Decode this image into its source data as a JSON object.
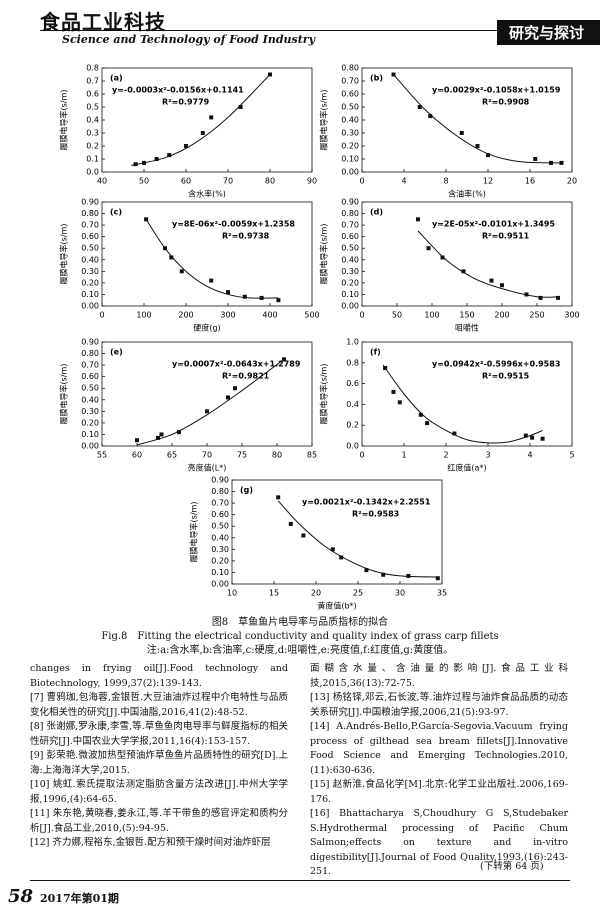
{
  "header": {
    "journal_cn": "食品工业科技",
    "journal_en": "Science and Technology of Food Industry",
    "section": "研究与探讨"
  },
  "chart_data": [
    {
      "type": "scatter",
      "label": "(a)",
      "equation": "y=-0.0003x²-0.0156x+0.1141",
      "r2": "R²=0.9779",
      "xlabel": "含水率(%)",
      "ylabel": "履膜电导率(s/m)",
      "x": [
        48,
        50,
        53,
        56,
        60,
        64,
        66,
        73,
        80
      ],
      "values": [
        0.06,
        0.07,
        0.1,
        0.13,
        0.2,
        0.3,
        0.42,
        0.5,
        0.75
      ],
      "trendline": {
        "x": [
          47,
          55,
          62,
          70,
          80
        ],
        "y": [
          0.05,
          0.11,
          0.22,
          0.42,
          0.75
        ]
      },
      "xlim": [
        40,
        90
      ],
      "xticks": [
        40,
        50,
        60,
        70,
        80,
        90
      ],
      "ylim": [
        0,
        0.8
      ],
      "yticks": [
        {
          "value": 0,
          "label": "0.0"
        },
        {
          "value": 0.1,
          "label": "0.1"
        },
        {
          "value": 0.2,
          "label": "0.2"
        },
        {
          "value": 0.3,
          "label": "0.3"
        },
        {
          "value": 0.4,
          "label": "0.4"
        },
        {
          "value": 0.5,
          "label": "0.5"
        },
        {
          "value": 0.6,
          "label": "0.6"
        },
        {
          "value": 0.7,
          "label": "0.7"
        },
        {
          "value": 0.8,
          "label": "0.8"
        }
      ]
    },
    {
      "type": "scatter",
      "label": "(b)",
      "equation": "y=0.0029x²-0.1058x+1.0159",
      "r2": "R²=0.9908",
      "xlabel": "含油率(%)",
      "ylabel": "履膜电导率(s/m)",
      "x": [
        3,
        5.5,
        6.5,
        9.5,
        11,
        12,
        16.5,
        18,
        19
      ],
      "values": [
        0.75,
        0.5,
        0.43,
        0.3,
        0.2,
        0.13,
        0.1,
        0.07,
        0.07
      ],
      "trendline": {
        "x": [
          3,
          6,
          9,
          12,
          15,
          19
        ],
        "y": [
          0.75,
          0.48,
          0.28,
          0.14,
          0.08,
          0.07
        ]
      },
      "xlim": [
        0,
        20
      ],
      "xticks": [
        0,
        4,
        8,
        12,
        16,
        20
      ],
      "ylim": [
        0,
        0.8
      ],
      "yticks": [
        {
          "value": 0,
          "label": "0.00"
        },
        {
          "value": 0.1,
          "label": "0.10"
        },
        {
          "value": 0.2,
          "label": "0.20"
        },
        {
          "value": 0.3,
          "label": "0.30"
        },
        {
          "value": 0.4,
          "label": "0.40"
        },
        {
          "value": 0.5,
          "label": "0.50"
        },
        {
          "value": 0.6,
          "label": "0.60"
        },
        {
          "value": 0.7,
          "label": "0.70"
        },
        {
          "value": 0.8,
          "label": "0.80"
        }
      ]
    },
    {
      "type": "scatter",
      "label": "(c)",
      "equation": "y=8E-06x²-0.0059x+1.2358",
      "r2": "R²=0.9738",
      "xlabel": "硬度(g)",
      "ylabel": "履膜电导率(s/m)",
      "x": [
        105,
        150,
        165,
        190,
        260,
        300,
        340,
        380,
        420
      ],
      "values": [
        0.75,
        0.5,
        0.42,
        0.3,
        0.22,
        0.12,
        0.08,
        0.07,
        0.05
      ],
      "trendline": {
        "x": [
          105,
          150,
          200,
          250,
          300,
          350,
          420
        ],
        "y": [
          0.75,
          0.5,
          0.3,
          0.17,
          0.1,
          0.07,
          0.07
        ]
      },
      "xlim": [
        0,
        500
      ],
      "xticks": [
        0,
        100,
        200,
        300,
        400,
        500
      ],
      "ylim": [
        0,
        0.9
      ],
      "yticks": [
        {
          "value": 0,
          "label": "0.00"
        },
        {
          "value": 0.1,
          "label": "0.10"
        },
        {
          "value": 0.2,
          "label": "0.20"
        },
        {
          "value": 0.3,
          "label": "0.30"
        },
        {
          "value": 0.4,
          "label": "0.40"
        },
        {
          "value": 0.5,
          "label": "0.50"
        },
        {
          "value": 0.6,
          "label": "0.60"
        },
        {
          "value": 0.7,
          "label": "0.70"
        },
        {
          "value": 0.8,
          "label": "0.80"
        },
        {
          "value": 0.9,
          "label": "0.90"
        }
      ]
    },
    {
      "type": "scatter",
      "label": "(d)",
      "equation": "y=2E-05x²-0.0101x+1.3495",
      "r2": "R²=0.9511",
      "xlabel": "咀嚼性",
      "ylabel": "履膜电导率(s/m)",
      "x": [
        80,
        95,
        115,
        145,
        185,
        200,
        235,
        255,
        280
      ],
      "values": [
        0.75,
        0.5,
        0.42,
        0.3,
        0.22,
        0.18,
        0.1,
        0.07,
        0.07
      ],
      "trendline": {
        "x": [
          80,
          120,
          160,
          200,
          250,
          280
        ],
        "y": [
          0.65,
          0.4,
          0.24,
          0.15,
          0.08,
          0.08
        ]
      },
      "xlim": [
        0,
        300
      ],
      "xticks": [
        0,
        50,
        100,
        150,
        200,
        250,
        300
      ],
      "ylim": [
        0,
        0.9
      ],
      "yticks": [
        {
          "value": 0,
          "label": "0.00"
        },
        {
          "value": 0.1,
          "label": "0.10"
        },
        {
          "value": 0.2,
          "label": "0.20"
        },
        {
          "value": 0.3,
          "label": "0.30"
        },
        {
          "value": 0.4,
          "label": "0.40"
        },
        {
          "value": 0.5,
          "label": "0.50"
        },
        {
          "value": 0.6,
          "label": "0.60"
        },
        {
          "value": 0.7,
          "label": "0.70"
        },
        {
          "value": 0.8,
          "label": "0.80"
        },
        {
          "value": 0.9,
          "label": "0.90"
        }
      ]
    },
    {
      "type": "scatter",
      "label": "(e)",
      "equation": "y=0.0007x²-0.0643x+1.2789",
      "r2": "R²=0.9821",
      "xlabel": "亮度值(L*)",
      "ylabel": "履膜电导率(s/m)",
      "x": [
        60,
        63,
        63.5,
        66,
        70,
        73,
        74,
        81
      ],
      "values": [
        0.05,
        0.07,
        0.1,
        0.12,
        0.3,
        0.42,
        0.5,
        0.75
      ],
      "trendline": {
        "x": [
          60,
          65,
          70,
          75,
          81
        ],
        "y": [
          0.01,
          0.1,
          0.27,
          0.48,
          0.75
        ]
      },
      "xlim": [
        55,
        85
      ],
      "xticks": [
        55,
        60,
        65,
        70,
        75,
        80,
        85
      ],
      "ylim": [
        0,
        0.9
      ],
      "yticks": [
        {
          "value": 0,
          "label": "0.00"
        },
        {
          "value": 0.1,
          "label": "0.10"
        },
        {
          "value": 0.2,
          "label": "0.20"
        },
        {
          "value": 0.3,
          "label": "0.30"
        },
        {
          "value": 0.4,
          "label": "0.40"
        },
        {
          "value": 0.5,
          "label": "0.50"
        },
        {
          "value": 0.6,
          "label": "0.60"
        },
        {
          "value": 0.7,
          "label": "0.70"
        },
        {
          "value": 0.8,
          "label": "0.80"
        },
        {
          "value": 0.9,
          "label": "0.90"
        }
      ]
    },
    {
      "type": "scatter",
      "label": "(f)",
      "equation": "y=0.0942x²-0.5996x+0.9583",
      "r2": "R²=0.9515",
      "xlabel": "红度值(a*)",
      "ylabel": "履膜电导率(s/m)",
      "x": [
        0.55,
        0.75,
        0.9,
        1.4,
        1.55,
        2.2,
        3.9,
        4.05,
        4.3
      ],
      "values": [
        0.75,
        0.52,
        0.42,
        0.3,
        0.22,
        0.12,
        0.1,
        0.08,
        0.07
      ],
      "trendline": {
        "x": [
          0.5,
          1,
          1.5,
          2,
          2.5,
          3,
          3.5,
          4,
          4.3
        ],
        "y": [
          0.78,
          0.5,
          0.28,
          0.15,
          0.06,
          0.03,
          0.04,
          0.1,
          0.15
        ]
      },
      "xlim": [
        0,
        5
      ],
      "xticks": [
        0,
        1,
        2,
        3,
        4,
        5
      ],
      "ylim": [
        0,
        1
      ],
      "yticks": [
        {
          "value": 0,
          "label": "0.0"
        },
        {
          "value": 0.2,
          "label": "0.2"
        },
        {
          "value": 0.4,
          "label": "0.4"
        },
        {
          "value": 0.6,
          "label": "0.6"
        },
        {
          "value": 0.8,
          "label": "0.8"
        },
        {
          "value": 1,
          "label": "1.0"
        }
      ]
    },
    {
      "type": "scatter",
      "label": "(g)",
      "equation": "y=0.0021x²-0.1342x+2.2551",
      "r2": "R²=0.9583",
      "xlabel": "黄度值(b*)",
      "ylabel": "履膜电导率(s/m)",
      "x": [
        15.5,
        17,
        18.5,
        22,
        23,
        26,
        28,
        31,
        34.5
      ],
      "values": [
        0.75,
        0.52,
        0.42,
        0.3,
        0.23,
        0.12,
        0.08,
        0.07,
        0.05
      ],
      "trendline": {
        "x": [
          15.5,
          18,
          21,
          24,
          27,
          30,
          34.5
        ],
        "y": [
          0.72,
          0.52,
          0.33,
          0.2,
          0.11,
          0.07,
          0.06
        ]
      },
      "xlim": [
        10,
        35
      ],
      "xticks": [
        10,
        15,
        20,
        25,
        30,
        35
      ],
      "ylim": [
        0,
        0.9
      ],
      "yticks": [
        {
          "value": 0,
          "label": "0.00"
        },
        {
          "value": 0.1,
          "label": "0.10"
        },
        {
          "value": 0.2,
          "label": "0.20"
        },
        {
          "value": 0.3,
          "label": "0.30"
        },
        {
          "value": 0.4,
          "label": "0.40"
        },
        {
          "value": 0.5,
          "label": "0.50"
        },
        {
          "value": 0.6,
          "label": "0.60"
        },
        {
          "value": 0.7,
          "label": "0.70"
        },
        {
          "value": 0.8,
          "label": "0.80"
        },
        {
          "value": 0.9,
          "label": "0.90"
        }
      ]
    }
  ],
  "caption": {
    "cn": "图8　草鱼鱼片电导率与品质指标的拟合",
    "en": "Fig.8　Fitting the electrical conductivity and quality index of grass carp fillets",
    "note": "注:a:含水率,b:含油率,c:硬度,d:咀嚼性,e:亮度值,f:红度值,g:黄度值。"
  },
  "references_left": [
    "changes in frying oil[J].Food technology and Biotechnology, 1999,37(2):139-143.",
    "[7] 曹鸦珈,包海蓉,金银哲.大豆油油炸过程中介电特性与品质变化相关性的研究[J].中国油脂,2016,41(2):48-52.",
    "[8] 张谢娜,罗永康,李雪,等.草鱼鱼肉电导率与鲜度指标的相关性研究[J].中国农业大学学报,2011,16(4):153-157.",
    "[9] 彭荣艳.微波加热型预油炸草鱼鱼片品质特性的研究[D].上海:上海海洋大学,2015.",
    "[10] 姚虹.索氏提取法测定脂肪含量方法改进[J].中州大学学报,1996,(4):64-65.",
    "[11] 朱东艳,黄晓春,姜永江,等.羊干带鱼的感官评定和质构分析[J].食品工业,2010,(5):94-95.",
    "[12] 齐力娜,程裕东,金银哲.配方和预干燥时间对油炸虾层"
  ],
  "references_right": [
    "面糊含水量、含油量的影响[J].食品工业科技,2015,36(13):72-75.",
    "[13] 杨铭铎,邓云,石长波,等.油炸过程与油炸食品品质的动态关系研究[J].中国粮油学报,2006,21(5):93-97.",
    "[14] A.Andrés-Bello,P.García-Segovia.Vacuum frying process of gilthead sea bream fillets[J].Innovative Food Science and Emerging Technologies.2010,(11):630-636.",
    "[15] 赵新淮.食品化学[M].北京:化学工业出版社.2006,169-176.",
    "[16] Bhattacharya S,Choudhury G S,Studebaker S.Hydrothermal processing of Pacific Chum Salmon;effects on texture and in-vitro digestibility[J].Journal of Food Quality,1993,(16):243-251."
  ],
  "continued": "(下转第 64 页)",
  "footer": {
    "page": "58",
    "issue": "2017年第01期"
  }
}
